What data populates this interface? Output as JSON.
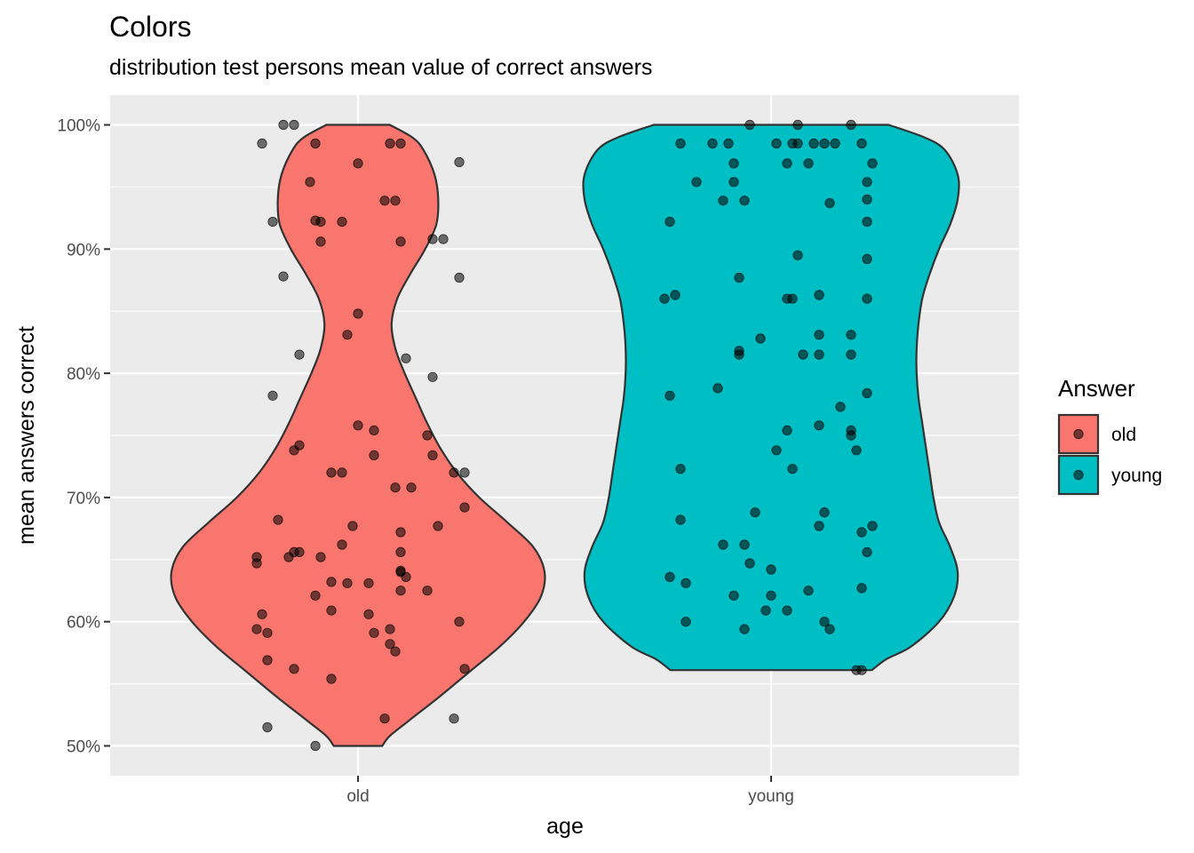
{
  "chart_data": {
    "type": "violin",
    "title": "Colors",
    "subtitle": "distribution test persons mean value of correct answers",
    "xlabel": "age",
    "ylabel": "mean answers correct",
    "categories": [
      "old",
      "young"
    ],
    "y_tick_labels": [
      "50%",
      "60%",
      "70%",
      "80%",
      "90%",
      "100%"
    ],
    "y_ticks": [
      0.5,
      0.6,
      0.7,
      0.8,
      0.9,
      1.0
    ],
    "ylim": [
      0.476,
      1.024
    ],
    "grid": true,
    "legend": {
      "title": "Answer",
      "position": "right",
      "entries": [
        {
          "label": "old",
          "color": "#F8766D"
        },
        {
          "label": "young",
          "color": "#00BFC4"
        }
      ]
    },
    "colors": {
      "old": "#F8766D",
      "young": "#00BFC4",
      "panel": "#EBEBEB",
      "outline": "#333333"
    },
    "violins": [
      {
        "category": "old",
        "profile": [
          [
            0.5,
            0.13
          ],
          [
            0.508,
            0.17
          ],
          [
            0.52,
            0.27
          ],
          [
            0.54,
            0.44
          ],
          [
            0.56,
            0.6
          ],
          [
            0.58,
            0.76
          ],
          [
            0.6,
            0.89
          ],
          [
            0.62,
            0.98
          ],
          [
            0.64,
            1.0
          ],
          [
            0.66,
            0.94
          ],
          [
            0.68,
            0.8
          ],
          [
            0.7,
            0.65
          ],
          [
            0.72,
            0.53
          ],
          [
            0.74,
            0.44
          ],
          [
            0.76,
            0.37
          ],
          [
            0.78,
            0.31
          ],
          [
            0.8,
            0.25
          ],
          [
            0.82,
            0.2
          ],
          [
            0.84,
            0.18
          ],
          [
            0.86,
            0.21
          ],
          [
            0.88,
            0.28
          ],
          [
            0.9,
            0.36
          ],
          [
            0.92,
            0.42
          ],
          [
            0.94,
            0.43
          ],
          [
            0.96,
            0.41
          ],
          [
            0.98,
            0.35
          ],
          [
            0.99,
            0.29
          ],
          [
            1.0,
            0.17
          ]
        ]
      },
      {
        "category": "young",
        "profile": [
          [
            0.561,
            0.54
          ],
          [
            0.57,
            0.62
          ],
          [
            0.58,
            0.75
          ],
          [
            0.6,
            0.9
          ],
          [
            0.62,
            0.98
          ],
          [
            0.64,
            1.0
          ],
          [
            0.66,
            0.96
          ],
          [
            0.68,
            0.9
          ],
          [
            0.7,
            0.87
          ],
          [
            0.72,
            0.85
          ],
          [
            0.74,
            0.83
          ],
          [
            0.76,
            0.81
          ],
          [
            0.78,
            0.79
          ],
          [
            0.8,
            0.78
          ],
          [
            0.82,
            0.78
          ],
          [
            0.84,
            0.79
          ],
          [
            0.86,
            0.81
          ],
          [
            0.88,
            0.85
          ],
          [
            0.9,
            0.9
          ],
          [
            0.92,
            0.96
          ],
          [
            0.94,
            1.0
          ],
          [
            0.96,
            1.0
          ],
          [
            0.98,
            0.93
          ],
          [
            0.99,
            0.82
          ],
          [
            1.0,
            0.63
          ]
        ]
      }
    ],
    "points": {
      "old": [
        [
          -0.18,
          0.985
        ],
        [
          -0.14,
          1.0
        ],
        [
          -0.12,
          1.0
        ],
        [
          -0.08,
          0.985
        ],
        [
          0.06,
          0.985
        ],
        [
          0.08,
          0.985
        ],
        [
          0.19,
          0.97
        ],
        [
          0.0,
          0.969
        ],
        [
          -0.09,
          0.954
        ],
        [
          0.05,
          0.939
        ],
        [
          0.07,
          0.939
        ],
        [
          -0.16,
          0.922
        ],
        [
          -0.08,
          0.923
        ],
        [
          -0.07,
          0.922
        ],
        [
          -0.03,
          0.922
        ],
        [
          -0.07,
          0.906
        ],
        [
          0.08,
          0.906
        ],
        [
          0.14,
          0.908
        ],
        [
          0.16,
          0.908
        ],
        [
          0.19,
          0.877
        ],
        [
          -0.14,
          0.878
        ],
        [
          0.0,
          0.848
        ],
        [
          -0.02,
          0.831
        ],
        [
          -0.11,
          0.815
        ],
        [
          0.09,
          0.812
        ],
        [
          0.14,
          0.797
        ],
        [
          -0.16,
          0.782
        ],
        [
          0.0,
          0.758
        ],
        [
          0.03,
          0.754
        ],
        [
          -0.11,
          0.742
        ],
        [
          0.13,
          0.75
        ],
        [
          -0.12,
          0.738
        ],
        [
          0.14,
          0.734
        ],
        [
          0.03,
          0.734
        ],
        [
          -0.05,
          0.72
        ],
        [
          -0.03,
          0.72
        ],
        [
          0.18,
          0.72
        ],
        [
          0.2,
          0.72
        ],
        [
          0.07,
          0.708
        ],
        [
          0.1,
          0.708
        ],
        [
          0.2,
          0.692
        ],
        [
          -0.15,
          0.682
        ],
        [
          0.15,
          0.677
        ],
        [
          -0.01,
          0.677
        ],
        [
          0.08,
          0.672
        ],
        [
          -0.19,
          0.652
        ],
        [
          -0.13,
          0.652
        ],
        [
          -0.11,
          0.656
        ],
        [
          -0.12,
          0.656
        ],
        [
          -0.07,
          0.652
        ],
        [
          -0.03,
          0.662
        ],
        [
          0.08,
          0.656
        ],
        [
          -0.19,
          0.647
        ],
        [
          0.08,
          0.641
        ],
        [
          0.08,
          0.64
        ],
        [
          0.09,
          0.636
        ],
        [
          -0.05,
          0.632
        ],
        [
          -0.02,
          0.631
        ],
        [
          0.02,
          0.631
        ],
        [
          0.08,
          0.625
        ],
        [
          0.13,
          0.625
        ],
        [
          -0.08,
          0.621
        ],
        [
          -0.18,
          0.606
        ],
        [
          -0.05,
          0.609
        ],
        [
          0.02,
          0.606
        ],
        [
          0.19,
          0.6
        ],
        [
          -0.19,
          0.594
        ],
        [
          -0.17,
          0.591
        ],
        [
          0.06,
          0.594
        ],
        [
          0.03,
          0.591
        ],
        [
          0.06,
          0.582
        ],
        [
          0.07,
          0.576
        ],
        [
          -0.17,
          0.569
        ],
        [
          -0.12,
          0.562
        ],
        [
          0.2,
          0.562
        ],
        [
          -0.05,
          0.554
        ],
        [
          0.05,
          0.522
        ],
        [
          0.18,
          0.522
        ],
        [
          -0.17,
          0.515
        ],
        [
          -0.08,
          0.5
        ]
      ],
      "young": [
        [
          -0.04,
          1.0
        ],
        [
          0.05,
          1.0
        ],
        [
          0.15,
          1.0
        ],
        [
          -0.17,
          0.985
        ],
        [
          -0.11,
          0.985
        ],
        [
          -0.08,
          0.985
        ],
        [
          0.01,
          0.985
        ],
        [
          0.04,
          0.985
        ],
        [
          0.05,
          0.985
        ],
        [
          0.08,
          0.985
        ],
        [
          0.1,
          0.985
        ],
        [
          0.12,
          0.985
        ],
        [
          0.17,
          0.985
        ],
        [
          -0.07,
          0.969
        ],
        [
          0.03,
          0.969
        ],
        [
          0.07,
          0.969
        ],
        [
          0.19,
          0.969
        ],
        [
          -0.14,
          0.954
        ],
        [
          -0.07,
          0.954
        ],
        [
          0.18,
          0.954
        ],
        [
          -0.09,
          0.939
        ],
        [
          -0.05,
          0.939
        ],
        [
          0.11,
          0.937
        ],
        [
          0.18,
          0.94
        ],
        [
          -0.19,
          0.922
        ],
        [
          0.18,
          0.922
        ],
        [
          0.05,
          0.895
        ],
        [
          0.18,
          0.892
        ],
        [
          -0.06,
          0.877
        ],
        [
          -0.18,
          0.863
        ],
        [
          -0.2,
          0.86
        ],
        [
          0.03,
          0.86
        ],
        [
          0.04,
          0.86
        ],
        [
          0.09,
          0.863
        ],
        [
          0.18,
          0.86
        ],
        [
          0.15,
          0.831
        ],
        [
          0.09,
          0.831
        ],
        [
          -0.02,
          0.828
        ],
        [
          -0.06,
          0.818
        ],
        [
          -0.06,
          0.815
        ],
        [
          0.06,
          0.815
        ],
        [
          0.09,
          0.815
        ],
        [
          0.15,
          0.815
        ],
        [
          -0.1,
          0.788
        ],
        [
          0.18,
          0.784
        ],
        [
          -0.19,
          0.782
        ],
        [
          0.13,
          0.773
        ],
        [
          0.09,
          0.758
        ],
        [
          0.03,
          0.754
        ],
        [
          0.15,
          0.754
        ],
        [
          0.15,
          0.75
        ],
        [
          0.01,
          0.738
        ],
        [
          0.16,
          0.738
        ],
        [
          -0.17,
          0.723
        ],
        [
          0.04,
          0.723
        ],
        [
          -0.03,
          0.688
        ],
        [
          0.1,
          0.688
        ],
        [
          -0.17,
          0.682
        ],
        [
          0.19,
          0.677
        ],
        [
          0.09,
          0.677
        ],
        [
          0.17,
          0.672
        ],
        [
          -0.09,
          0.662
        ],
        [
          -0.05,
          0.662
        ],
        [
          0.18,
          0.656
        ],
        [
          -0.04,
          0.647
        ],
        [
          -0.0,
          0.642
        ],
        [
          -0.19,
          0.636
        ],
        [
          -0.16,
          0.631
        ],
        [
          0.07,
          0.625
        ],
        [
          0.17,
          0.627
        ],
        [
          -0.07,
          0.621
        ],
        [
          0.0,
          0.621
        ],
        [
          -0.01,
          0.609
        ],
        [
          0.03,
          0.609
        ],
        [
          -0.16,
          0.6
        ],
        [
          0.1,
          0.6
        ],
        [
          -0.05,
          0.594
        ],
        [
          0.11,
          0.594
        ],
        [
          0.16,
          0.561
        ],
        [
          0.17,
          0.561
        ]
      ]
    }
  }
}
